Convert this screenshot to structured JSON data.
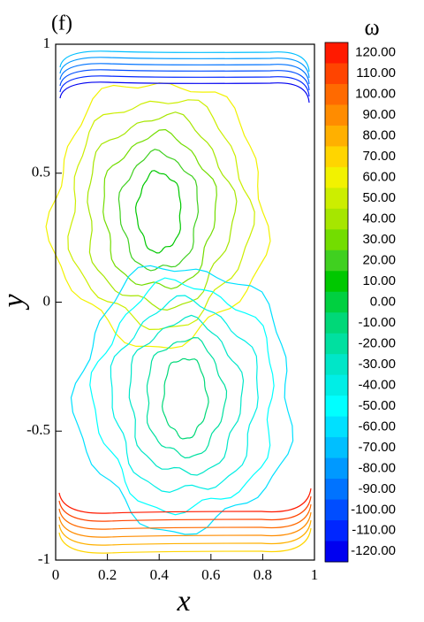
{
  "chart_data": {
    "type": "contour",
    "panel_label": "(f)",
    "xlabel": "x",
    "ylabel": "y",
    "xlim": [
      0,
      1
    ],
    "ylim": [
      -1,
      1
    ],
    "xticks": [
      0,
      0.2,
      0.4,
      0.6,
      0.8,
      1
    ],
    "yticks": [
      -1,
      -0.5,
      0,
      0.5,
      1
    ],
    "colorbar_title": "ω",
    "levels": [
      {
        "value": 120,
        "label": "120.00",
        "color": "#ff1a00"
      },
      {
        "value": 110,
        "label": "110.00",
        "color": "#ff4400"
      },
      {
        "value": 100,
        "label": "100.00",
        "color": "#ff6a00"
      },
      {
        "value": 90,
        "label": "90.00",
        "color": "#ff8c00"
      },
      {
        "value": 80,
        "label": "80.00",
        "color": "#ffb000"
      },
      {
        "value": 70,
        "label": "70.00",
        "color": "#ffd500"
      },
      {
        "value": 60,
        "label": "60.00",
        "color": "#f2f200"
      },
      {
        "value": 50,
        "label": "50.00",
        "color": "#ccee00"
      },
      {
        "value": 40,
        "label": "40.00",
        "color": "#a6e600"
      },
      {
        "value": 30,
        "label": "30.00",
        "color": "#73dd00"
      },
      {
        "value": 20,
        "label": "20.00",
        "color": "#40d020"
      },
      {
        "value": 10,
        "label": "10.00",
        "color": "#00c800"
      },
      {
        "value": 0,
        "label": "0.00",
        "color": "#00d040"
      },
      {
        "value": -10,
        "label": "-10.00",
        "color": "#00d878"
      },
      {
        "value": -20,
        "label": "-20.00",
        "color": "#00e0a0"
      },
      {
        "value": -30,
        "label": "-30.00",
        "color": "#00e6c8"
      },
      {
        "value": -40,
        "label": "-40.00",
        "color": "#00eee6"
      },
      {
        "value": -50,
        "label": "-50.00",
        "color": "#00ffff"
      },
      {
        "value": -60,
        "label": "-60.00",
        "color": "#00e0ff"
      },
      {
        "value": -70,
        "label": "-70.00",
        "color": "#00bfff"
      },
      {
        "value": -80,
        "label": "-80.00",
        "color": "#0099ff"
      },
      {
        "value": -90,
        "label": "-90.00",
        "color": "#0073ff"
      },
      {
        "value": -100,
        "label": "-100.00",
        "color": "#004dff"
      },
      {
        "value": -110,
        "label": "-110.00",
        "color": "#0026ff"
      },
      {
        "value": -120,
        "label": "-120.00",
        "color": "#0000f0"
      }
    ]
  }
}
